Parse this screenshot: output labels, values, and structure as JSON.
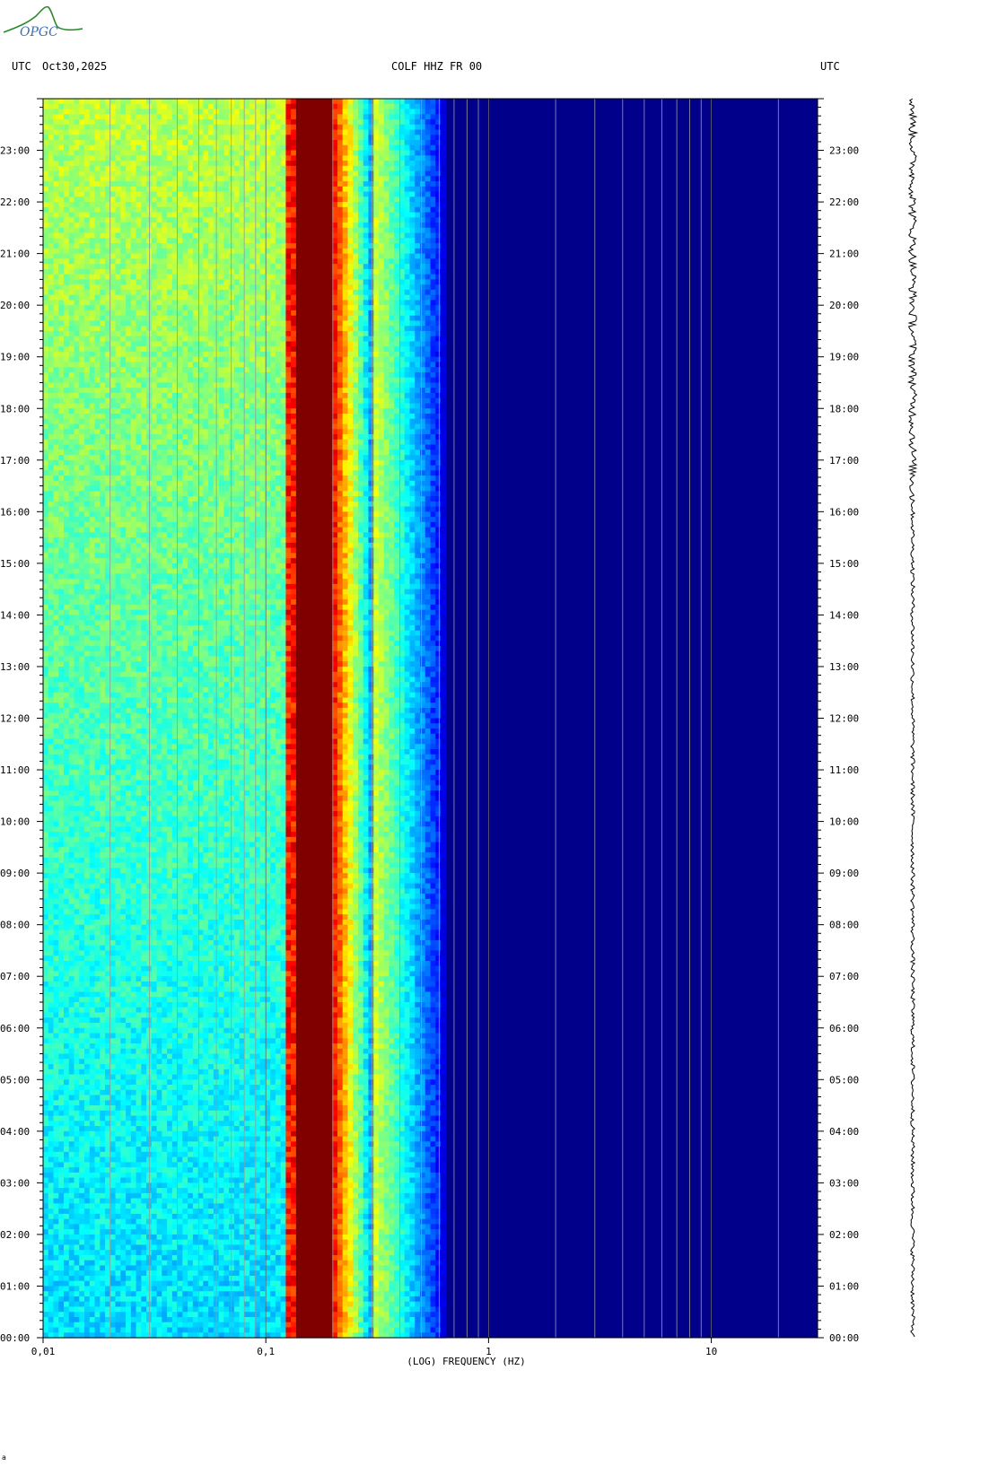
{
  "header": {
    "logo_text": "OPGC",
    "left_timezone": "UTC",
    "date": "Oct30,2025",
    "station": "COLF HHZ FR 00",
    "right_timezone": "UTC"
  },
  "footer_mark": "a",
  "colors": {
    "background_low": "#00008b",
    "peak": "#800000",
    "gridline": "#9a9a9a",
    "seismogram": "#000000"
  },
  "chart_data": {
    "type": "heatmap",
    "xlabel": "(LOG) FREQUENCY (HZ)",
    "x_scale": "log",
    "xlim": [
      0.01,
      30
    ],
    "x_tick_labels": [
      "0,01",
      "0,1",
      "1",
      "10"
    ],
    "x_tick_values": [
      0.01,
      0.1,
      1,
      10
    ],
    "y_tick_labels": [
      "00:00",
      "01:00",
      "02:00",
      "03:00",
      "04:00",
      "05:00",
      "06:00",
      "07:00",
      "08:00",
      "09:00",
      "10:00",
      "11:00",
      "12:00",
      "13:00",
      "14:00",
      "15:00",
      "16:00",
      "17:00",
      "18:00",
      "19:00",
      "20:00",
      "21:00",
      "22:00",
      "23:00"
    ],
    "ylim_hours": [
      0,
      24
    ],
    "primary_microseism_band_hz": [
      0.14,
      0.2
    ],
    "secondary_peak_band_hz": [
      0.12,
      0.3
    ],
    "noise_floor_above_hz": 0.6,
    "colormap": "jet",
    "grid": true,
    "seismogram_trace": true
  }
}
